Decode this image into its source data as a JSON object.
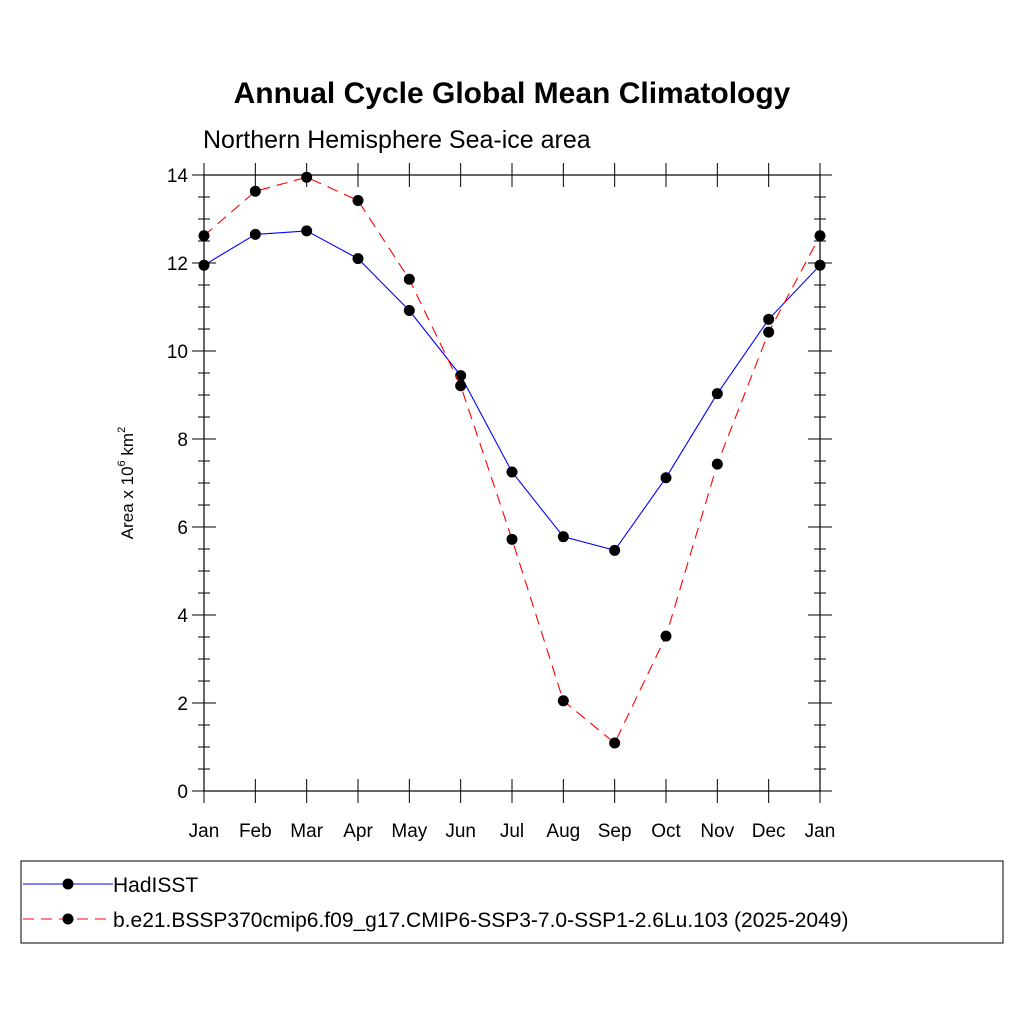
{
  "chart_data": {
    "type": "line",
    "title": "Annual Cycle Global Mean Climatology",
    "subtitle": "Northern Hemisphere Sea-ice area",
    "ylabel": {
      "prefix": "Area x 10",
      "sup1": "6",
      "unit": " km",
      "sup2": "2"
    },
    "categories": [
      "Jan",
      "Feb",
      "Mar",
      "Apr",
      "May",
      "Jun",
      "Jul",
      "Aug",
      "Sep",
      "Oct",
      "Nov",
      "Dec",
      "Jan"
    ],
    "ylim": [
      0,
      14
    ],
    "yticks": [
      0,
      2,
      4,
      6,
      8,
      10,
      12,
      14
    ],
    "ytick_labels": [
      "0",
      "2",
      "4",
      "6",
      "8",
      "10",
      "12",
      "14"
    ],
    "series": [
      {
        "name": "HadISST",
        "color": "#0000ff",
        "dash": "solid",
        "values": [
          11.95,
          12.65,
          12.73,
          12.1,
          10.92,
          9.44,
          7.25,
          5.78,
          5.47,
          7.12,
          9.03,
          10.72,
          11.95
        ]
      },
      {
        "name": "b.e21.BSSP370cmip6.f09_g17.CMIP6-SSP3-7.0-SSP1-2.6Lu.103 (2025-2049)",
        "color": "#ff0000",
        "dash": "dashed",
        "values": [
          12.62,
          13.63,
          13.95,
          13.42,
          11.63,
          9.21,
          5.72,
          2.05,
          1.09,
          3.52,
          7.43,
          10.43,
          12.62
        ]
      }
    ],
    "grid": false,
    "legend_position": "bottom"
  }
}
